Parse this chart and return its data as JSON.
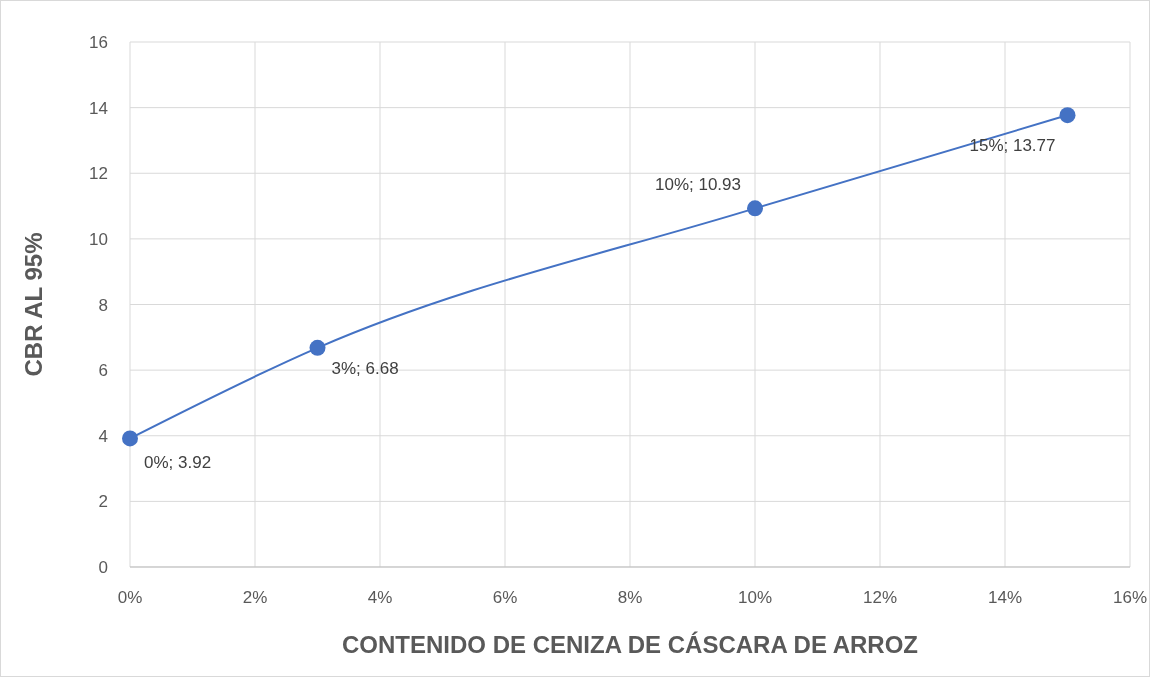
{
  "chart_data": {
    "type": "line",
    "xlabel": "CONTENIDO DE CENIZA DE CÁSCARA DE ARROZ",
    "ylabel": "CBR AL 95%",
    "x": [
      0,
      3,
      10,
      15
    ],
    "series": [
      {
        "color": "#4472c4",
        "values": [
          3.92,
          6.68,
          10.93,
          13.77
        ],
        "value_labels": [
          "0%; 3.92",
          "3%; 6.68",
          "10%; 10.93",
          "15%; 13.77"
        ]
      }
    ],
    "xlim": [
      0,
      16
    ],
    "xticks": [
      {
        "value": 0,
        "label": "0%"
      },
      {
        "value": 2,
        "label": "2%"
      },
      {
        "value": 4,
        "label": "4%"
      },
      {
        "value": 6,
        "label": "6%"
      },
      {
        "value": 8,
        "label": "8%"
      },
      {
        "value": 10,
        "label": "10%"
      },
      {
        "value": 12,
        "label": "12%"
      },
      {
        "value": 14,
        "label": "14%"
      },
      {
        "value": 16,
        "label": "16%"
      }
    ],
    "ylim": [
      0,
      16
    ],
    "yticks": [
      0,
      2,
      4,
      6,
      8,
      10,
      12,
      14,
      16
    ],
    "grid": true,
    "marker": "circle"
  }
}
